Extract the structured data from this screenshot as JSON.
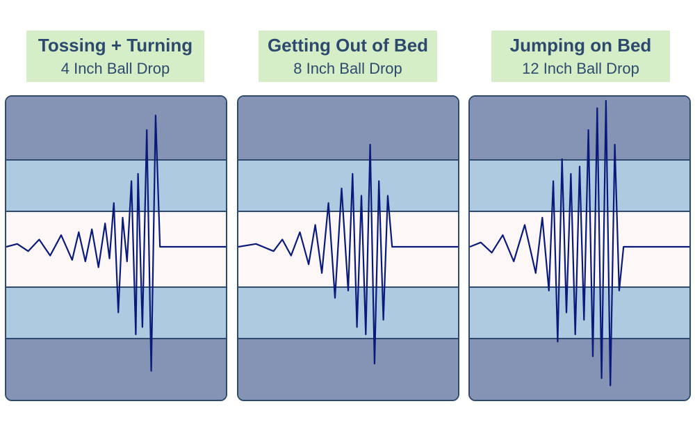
{
  "colors": {
    "label_bg": "#d6eec7",
    "label_text": "#2d4a6e",
    "outer_band": "#8593b4",
    "mid_band": "#adcae0",
    "center_band": "#fdf8f7",
    "border": "#2d4a6e",
    "wave": "#0a1a7a"
  },
  "chart_data": [
    {
      "type": "line",
      "title": "Tossing + Turning",
      "subtitle": "4 Inch Ball Drop",
      "xlabel": "",
      "ylabel": "",
      "ylim": [
        -1,
        1
      ],
      "grid": false,
      "series": [
        {
          "x": [
            0.0,
            0.05,
            0.1,
            0.15,
            0.2,
            0.25,
            0.3,
            0.33,
            0.36,
            0.39,
            0.42,
            0.45,
            0.47,
            0.49,
            0.51,
            0.53,
            0.55,
            0.57,
            0.59,
            0.6,
            0.62,
            0.64,
            0.66,
            0.68,
            0.7,
            1.0
          ],
          "y": [
            0.0,
            0.02,
            -0.03,
            0.05,
            -0.06,
            0.08,
            -0.09,
            0.1,
            -0.1,
            0.12,
            -0.14,
            0.16,
            -0.08,
            0.3,
            -0.45,
            0.2,
            -0.1,
            0.45,
            -0.6,
            0.5,
            -0.55,
            0.8,
            -0.85,
            0.9,
            0.0,
            0.0
          ]
        }
      ]
    },
    {
      "type": "line",
      "title": "Getting Out of Bed",
      "subtitle": "8 Inch Ball Drop",
      "xlabel": "",
      "ylabel": "",
      "ylim": [
        -1,
        1
      ],
      "grid": false,
      "series": [
        {
          "x": [
            0.0,
            0.08,
            0.16,
            0.2,
            0.24,
            0.28,
            0.32,
            0.35,
            0.38,
            0.41,
            0.44,
            0.47,
            0.5,
            0.52,
            0.54,
            0.56,
            0.58,
            0.6,
            0.62,
            0.64,
            0.66,
            0.68,
            0.7,
            1.0
          ],
          "y": [
            0.0,
            0.02,
            -0.03,
            0.05,
            -0.06,
            0.1,
            -0.12,
            0.15,
            -0.18,
            0.3,
            -0.35,
            0.4,
            -0.3,
            0.5,
            -0.55,
            0.35,
            -0.6,
            0.7,
            -0.8,
            0.45,
            -0.5,
            0.35,
            0.0,
            0.0
          ]
        }
      ]
    },
    {
      "type": "line",
      "title": "Jumping on Bed",
      "subtitle": "12 Inch Ball Drop",
      "xlabel": "",
      "ylabel": "",
      "ylim": [
        -1,
        1
      ],
      "grid": false,
      "series": [
        {
          "x": [
            0.0,
            0.05,
            0.1,
            0.15,
            0.2,
            0.25,
            0.3,
            0.33,
            0.36,
            0.38,
            0.4,
            0.42,
            0.44,
            0.46,
            0.48,
            0.5,
            0.52,
            0.54,
            0.56,
            0.58,
            0.6,
            0.62,
            0.64,
            0.66,
            0.68,
            0.7,
            1.0
          ],
          "y": [
            0.0,
            0.03,
            -0.04,
            0.08,
            -0.1,
            0.15,
            -0.18,
            0.2,
            -0.3,
            0.45,
            -0.65,
            0.6,
            -0.45,
            0.5,
            -0.6,
            0.55,
            -0.5,
            0.8,
            -0.75,
            0.95,
            -0.9,
            1.0,
            -0.95,
            0.7,
            -0.3,
            0.0,
            0.0
          ]
        }
      ]
    }
  ]
}
